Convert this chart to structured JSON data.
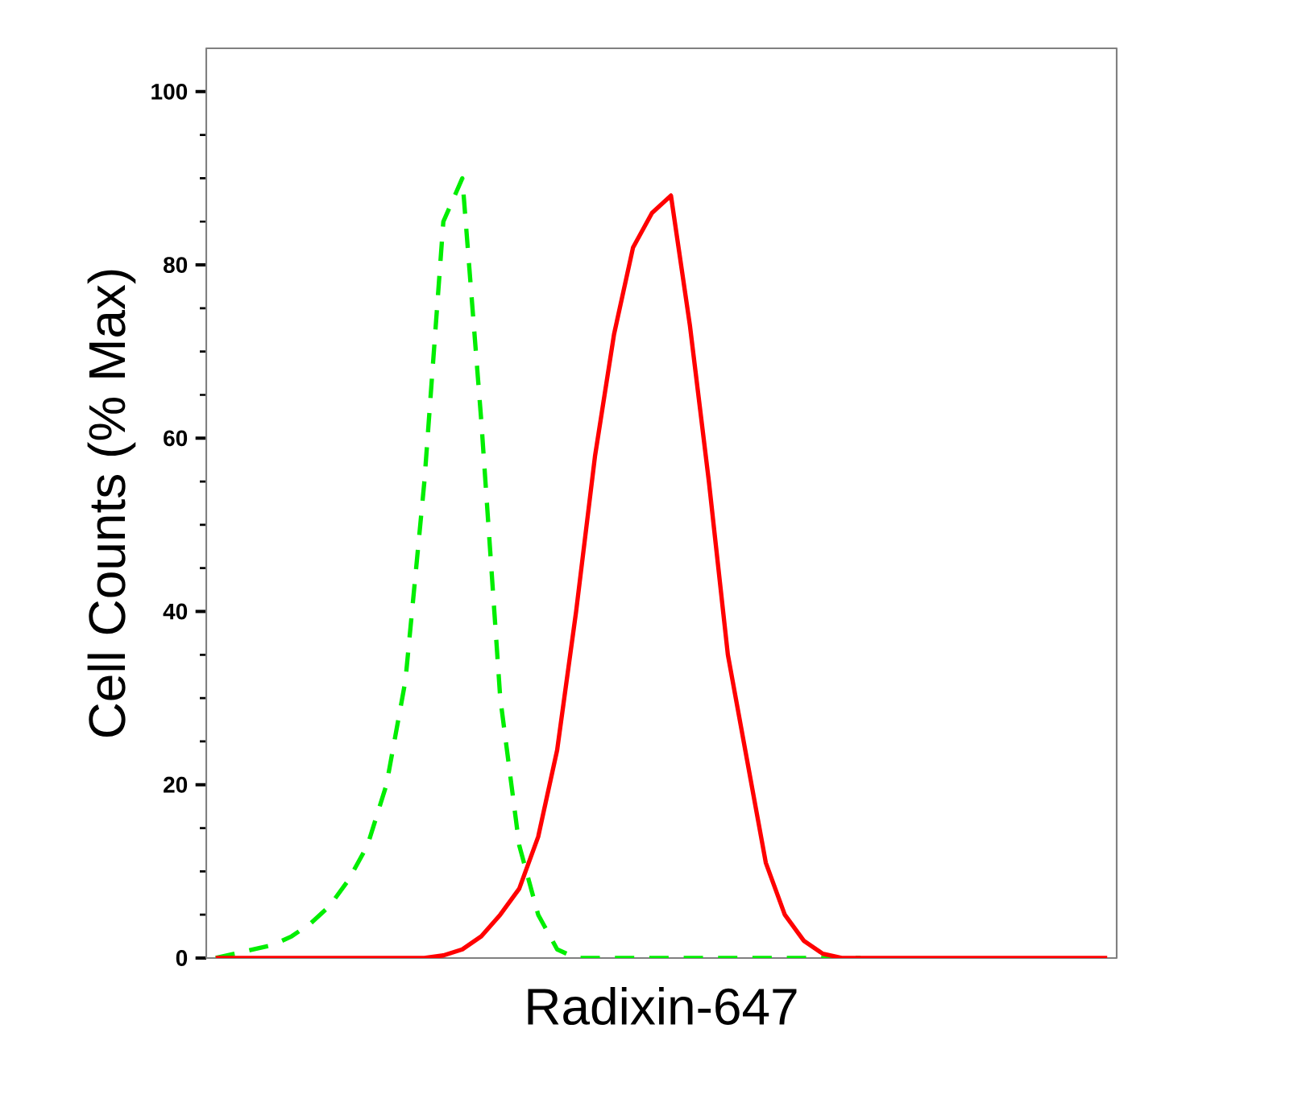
{
  "chart_data": {
    "type": "line",
    "xlabel": "Radixin-647",
    "ylabel": "Cell Counts (% Max)",
    "categories": [
      null,
      null,
      null,
      null,
      null,
      null,
      null,
      null,
      null,
      null,
      null,
      null,
      null,
      null,
      null,
      null,
      null,
      null,
      null,
      null,
      null,
      null,
      null,
      null,
      null,
      null,
      null,
      null,
      null,
      null,
      null,
      null,
      null,
      null,
      null,
      null,
      null,
      null,
      null,
      null,
      null,
      null,
      null,
      null,
      null,
      null,
      null,
      null
    ],
    "series": [
      {
        "color": "#00ee00",
        "line_style": "dashed",
        "values": [
          0,
          0.5,
          1,
          1.5,
          2.5,
          4,
          6,
          9,
          13,
          20,
          32,
          55,
          85,
          90,
          62,
          30,
          13,
          5,
          1,
          0,
          0,
          0,
          0,
          0,
          0,
          0,
          0,
          0,
          0,
          0,
          0,
          0,
          0,
          0,
          0,
          null,
          null,
          null,
          null,
          null,
          null,
          null,
          null,
          null,
          null,
          null,
          null,
          null
        ]
      },
      {
        "color": "#ff0000",
        "line_style": "solid",
        "values": [
          0,
          0,
          0,
          0,
          0,
          0,
          0,
          0,
          0,
          0,
          0,
          0,
          0.3,
          1,
          2.5,
          5,
          8,
          14,
          24,
          40,
          58,
          72,
          82,
          86,
          88,
          73,
          55,
          35,
          23,
          11,
          5,
          2,
          0.5,
          0,
          0,
          0,
          0,
          0,
          0,
          0,
          0,
          0,
          0,
          0,
          0,
          0,
          0,
          0
        ]
      }
    ],
    "ylim": [
      0,
      105
    ],
    "yticks": [
      0,
      20,
      40,
      60,
      80,
      100
    ],
    "grid": false
  }
}
